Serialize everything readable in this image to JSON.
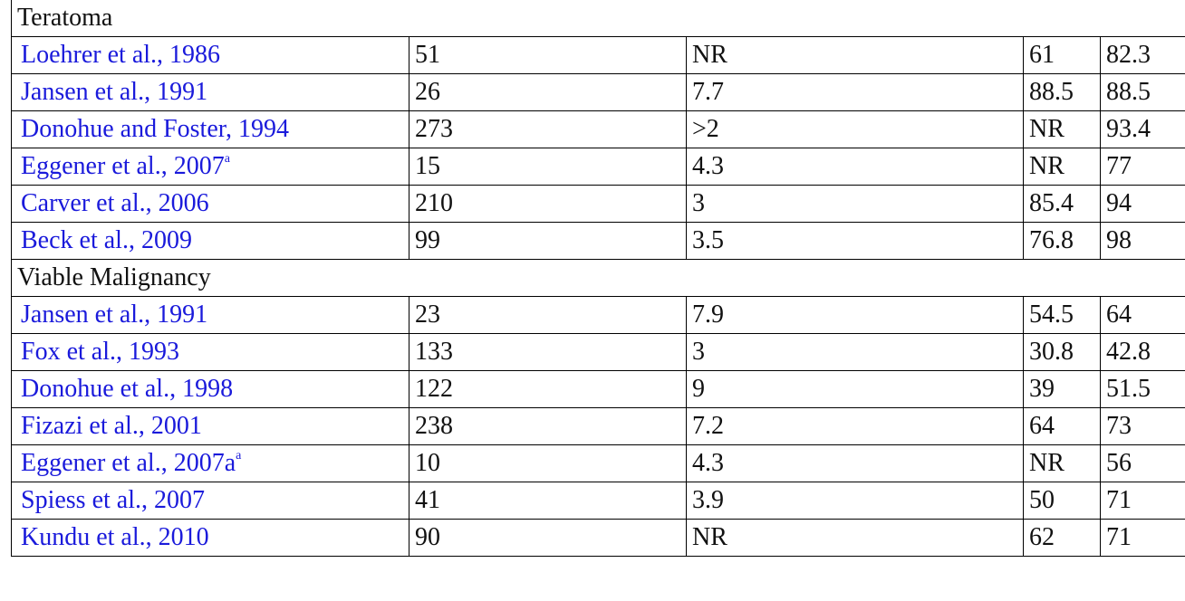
{
  "sections": [
    {
      "title": "Teratoma",
      "rows": [
        {
          "ref": "Loehrer et al., 1986",
          "sup": "",
          "c2": "51",
          "c3": "NR",
          "c4": "61",
          "c5": "82.3"
        },
        {
          "ref": "Jansen et al., 1991",
          "sup": "",
          "c2": "26",
          "c3": "7.7",
          "c4": "88.5",
          "c5": "88.5"
        },
        {
          "ref": "Donohue and Foster, 1994",
          "sup": "",
          "c2": "273",
          "c3": ">2",
          "c4": "NR",
          "c5": "93.4"
        },
        {
          "ref": "Eggener et al., 2007",
          "sup": "a",
          "c2": "15",
          "c3": "4.3",
          "c4": "NR",
          "c5": "77"
        },
        {
          "ref": "Carver et al., 2006",
          "sup": "",
          "c2": "210",
          "c3": "3",
          "c4": "85.4",
          "c5": "94"
        },
        {
          "ref": "Beck et al., 2009",
          "sup": "",
          "c2": "99",
          "c3": "3.5",
          "c4": "76.8",
          "c5": "98"
        }
      ]
    },
    {
      "title": "Viable Malignancy",
      "rows": [
        {
          "ref": "Jansen et al., 1991",
          "sup": "",
          "c2": "23",
          "c3": "7.9",
          "c4": "54.5",
          "c5": "64"
        },
        {
          "ref": "Fox et al., 1993",
          "sup": "",
          "c2": "133",
          "c3": "3",
          "c4": "30.8",
          "c5": "42.8"
        },
        {
          "ref": "Donohue et al., 1998",
          "sup": "",
          "c2": "122",
          "c3": "9",
          "c4": "39",
          "c5": "51.5"
        },
        {
          "ref": "Fizazi et al., 2001",
          "sup": "",
          "c2": "238",
          "c3": "7.2",
          "c4": "64",
          "c5": "73"
        },
        {
          "ref": "Eggener et al., 2007a",
          "sup": "a",
          "c2": "10",
          "c3": "4.3",
          "c4": "NR",
          "c5": "56"
        },
        {
          "ref": "Spiess et al., 2007",
          "sup": "",
          "c2": "41",
          "c3": "3.9",
          "c4": "50",
          "c5": "71"
        },
        {
          "ref": "Kundu et al., 2010",
          "sup": "",
          "c2": "90",
          "c3": "NR",
          "c4": "62",
          "c5": "71"
        }
      ]
    }
  ]
}
